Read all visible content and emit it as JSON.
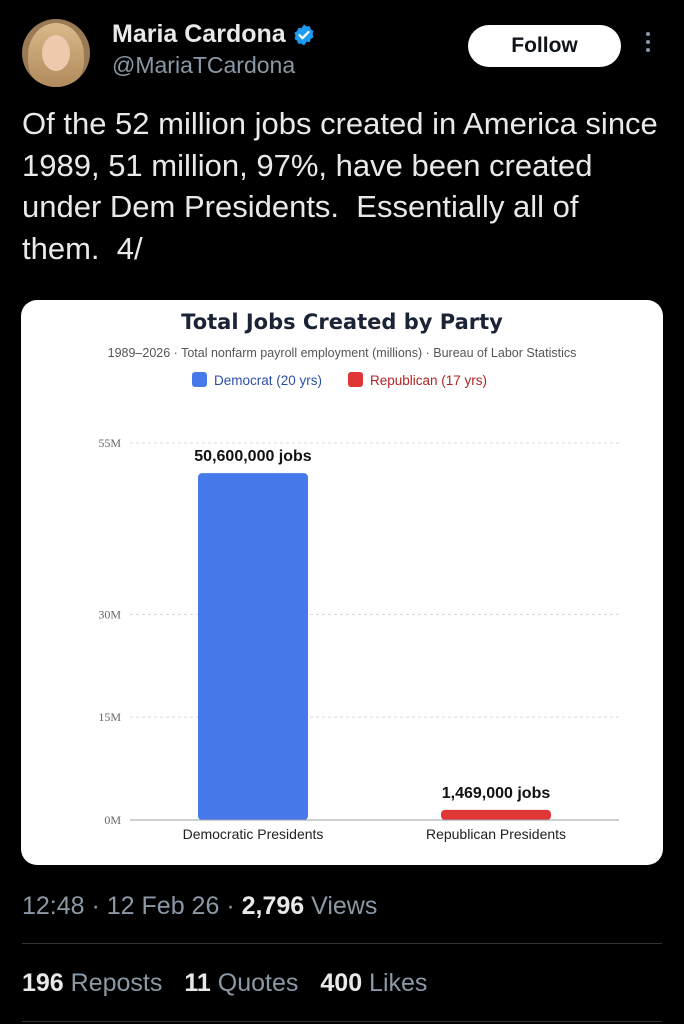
{
  "user": {
    "name": "Maria Cardona",
    "handle": "@MariaTCardona",
    "follow_label": "Follow"
  },
  "tweet": {
    "text": "Of the 52 million jobs created in America since 1989, 51 million, 97%, have been created under Dem Presidents.  Essentially all of them.  4/"
  },
  "chart_data": {
    "type": "bar",
    "title": "Total Jobs Created by Party",
    "subtitle": "1989–2026 · Total nonfarm payroll employment (millions) · Bureau of Labor Statistics",
    "legend": [
      {
        "label": "Democrat (20 yrs)",
        "color": "#4679ea"
      },
      {
        "label": "Republican (17 yrs)",
        "color": "#e03636"
      }
    ],
    "categories": [
      "Democratic Presidents",
      "Republican Presidents"
    ],
    "values": [
      50.6,
      1.469
    ],
    "data_labels": [
      "50,600,000 jobs",
      "1,469,000 jobs"
    ],
    "colors": [
      "#4679ea",
      "#e03636"
    ],
    "ytick_values": [
      0,
      15,
      30,
      55
    ],
    "yticks": [
      "0M",
      "15M",
      "30M",
      "55M"
    ],
    "ylim": [
      0,
      55
    ],
    "xlabel": "",
    "ylabel": ""
  },
  "meta": {
    "time": "12:48",
    "sep": " · ",
    "date": "12 Feb 26",
    "views_count": "2,796",
    "views_label": " Views"
  },
  "stats": {
    "reposts_count": "196",
    "reposts_label": " Reposts",
    "quotes_count": "11",
    "quotes_label": " Quotes",
    "likes_count": "400",
    "likes_label": " Likes"
  },
  "colors": {
    "background": "#000000",
    "verified": "#1d9bf0",
    "muted": "#8b98a5"
  }
}
